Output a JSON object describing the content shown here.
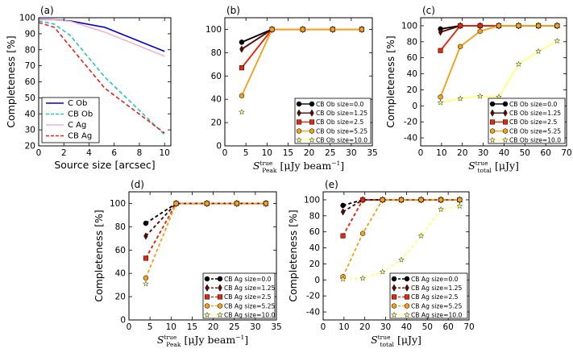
{
  "chart_data": [
    {
      "panel": "(a)",
      "type": "line",
      "xlabel": "Source size [arcsec]",
      "ylabel": "Completeness [%]",
      "xlim": [
        0,
        10.5
      ],
      "ylim": [
        20,
        100
      ],
      "xticks": [
        0,
        2,
        4,
        6,
        8,
        10
      ],
      "yticks": [
        20,
        30,
        40,
        50,
        60,
        70,
        80,
        90,
        100
      ],
      "legend": "lower-left",
      "series": [
        {
          "name": "C Ob",
          "color": "#0000cc",
          "dash": "solid",
          "marker": "none",
          "x": [
            0,
            1.25,
            2.5,
            5.25,
            10
          ],
          "y": [
            99,
            98.7,
            98,
            94,
            79
          ]
        },
        {
          "name": "CB Ob",
          "color": "#26c6b8",
          "dash": "dashed",
          "marker": "none",
          "x": [
            0,
            1.25,
            2.5,
            5.25,
            10
          ],
          "y": [
            98,
            96,
            89,
            63,
            27
          ]
        },
        {
          "name": "C Ag",
          "color": "#f3b4c7",
          "dash": "solid",
          "marker": "none",
          "x": [
            0,
            1.25,
            2.5,
            5.25,
            10
          ],
          "y": [
            98.8,
            98.6,
            97.8,
            91,
            76
          ]
        },
        {
          "name": "CB Ag",
          "color": "#e8231b",
          "dash": "dashed",
          "marker": "none",
          "x": [
            0,
            1.25,
            2.5,
            5.25,
            10
          ],
          "y": [
            97,
            94,
            82,
            56,
            28
          ]
        }
      ]
    },
    {
      "panel": "(b)",
      "type": "line",
      "xlabel_main": "S",
      "xlabel_sub": "Peak",
      "xlabel_sup": "true",
      "xlabel_units": "[μJy beam",
      "xlabel_units_sup": "−1",
      "xlabel_units_close": "]",
      "ylabel": "",
      "xlim": [
        0,
        35
      ],
      "ylim": [
        0,
        110
      ],
      "xticks": [
        0,
        5,
        10,
        15,
        20,
        25,
        30,
        35
      ],
      "yticks": [
        0,
        20,
        40,
        60,
        80,
        100
      ],
      "legend": "lower-right",
      "series": [
        {
          "name": "CB Ob size=0.0",
          "color": "#000000",
          "dash": "solid",
          "marker": "circle",
          "x": [
            4,
            11.2,
            18.5,
            25.6,
            32.5
          ],
          "y": [
            89,
            100,
            100,
            100,
            100
          ]
        },
        {
          "name": "CB Ob size=1.25",
          "color": "#5a0a02",
          "dash": "solid",
          "marker": "diamond",
          "x": [
            4,
            11.2,
            18.5,
            25.6,
            32.5
          ],
          "y": [
            83,
            100,
            100,
            100,
            100
          ]
        },
        {
          "name": "CB Ob size=2.5",
          "color": "#e2280e",
          "dash": "solid",
          "marker": "square",
          "x": [
            4,
            11.2,
            18.5,
            25.6,
            32.5
          ],
          "y": [
            67,
            100,
            100,
            100,
            100
          ]
        },
        {
          "name": "CB Ob size=5.25",
          "color": "#f5a21a",
          "dash": "solid",
          "marker": "hexagon",
          "x": [
            4,
            11.2,
            18.5,
            25.6,
            32.5
          ],
          "y": [
            43,
            100,
            100,
            100,
            100
          ]
        },
        {
          "name": "CB Ob size=10.0",
          "color": "#ffff80",
          "dash": "solid",
          "marker": "star",
          "x": [
            4
          ],
          "y": [
            29
          ]
        }
      ]
    },
    {
      "panel": "(c)",
      "type": "line",
      "xlabel_main": "S",
      "xlabel_sub": "total",
      "xlabel_sup": "true",
      "xlabel_units": "[μJy]",
      "ylabel": "Completeness [%]",
      "xlim": [
        0,
        70
      ],
      "ylim": [
        -50,
        110
      ],
      "xticks": [
        0,
        10,
        20,
        30,
        40,
        50,
        60,
        70
      ],
      "yticks": [
        -40,
        -20,
        0,
        20,
        40,
        60,
        80,
        100
      ],
      "legend": "lower-right",
      "series": [
        {
          "name": "CB Ob size=0.0",
          "color": "#000000",
          "dash": "solid",
          "marker": "circle",
          "x": [
            9.5,
            19,
            28.5,
            37.5,
            47,
            56.5,
            65.5
          ],
          "y": [
            96,
            100,
            100,
            100,
            100,
            100,
            100
          ]
        },
        {
          "name": "CB Ob size=1.25",
          "color": "#5a0a02",
          "dash": "solid",
          "marker": "diamond",
          "x": [
            9.5,
            19,
            28.5,
            37.5,
            47,
            56.5,
            65.5
          ],
          "y": [
            92,
            100,
            100,
            100,
            100,
            100,
            100
          ]
        },
        {
          "name": "CB Ob size=2.5",
          "color": "#e2280e",
          "dash": "solid",
          "marker": "square",
          "x": [
            9.5,
            19,
            28.5,
            37.5,
            47,
            56.5,
            65.5
          ],
          "y": [
            69,
            100,
            100,
            100,
            100,
            100,
            100
          ]
        },
        {
          "name": "CB Ob size=5.25",
          "color": "#f5a21a",
          "dash": "solid",
          "marker": "hexagon",
          "x": [
            9.5,
            19,
            28.5,
            37.5,
            47,
            56.5,
            65.5
          ],
          "y": [
            11,
            74,
            93,
            100,
            100,
            100,
            100
          ]
        },
        {
          "name": "CB Ob size=10.0",
          "color": "#ffff80",
          "dash": "solid",
          "marker": "star",
          "x": [
            9.5,
            19,
            28.5,
            37.5,
            47,
            56.5,
            65.5
          ],
          "y": [
            4,
            9,
            12,
            11,
            52,
            68,
            81
          ]
        }
      ]
    },
    {
      "panel": "(d)",
      "type": "line",
      "xlabel_main": "S",
      "xlabel_sub": "Peak",
      "xlabel_sup": "true",
      "xlabel_units": "[μJy beam",
      "xlabel_units_sup": "−1",
      "xlabel_units_close": "]",
      "ylabel": "Completeness [%]",
      "xlim": [
        0,
        35
      ],
      "ylim": [
        0,
        110
      ],
      "xticks": [
        0,
        5,
        10,
        15,
        20,
        25,
        30,
        35
      ],
      "yticks": [
        0,
        20,
        40,
        60,
        80,
        100
      ],
      "legend": "lower-right",
      "series": [
        {
          "name": "CB Ag size=0.0",
          "color": "#000000",
          "dash": "dashed",
          "marker": "circle",
          "x": [
            4,
            11.2,
            18.5,
            25.6,
            32.5
          ],
          "y": [
            83,
            100,
            100,
            100,
            100
          ]
        },
        {
          "name": "CB Ag size=1.25",
          "color": "#5a0a02",
          "dash": "dashed",
          "marker": "diamond",
          "x": [
            4,
            11.2,
            18.5,
            25.6,
            32.5
          ],
          "y": [
            72,
            100,
            100,
            100,
            100
          ]
        },
        {
          "name": "CB Ag size=2.5",
          "color": "#e2280e",
          "dash": "dashed",
          "marker": "square",
          "x": [
            4,
            11.2,
            18.5,
            25.6,
            32.5
          ],
          "y": [
            53,
            100,
            100,
            100,
            100
          ]
        },
        {
          "name": "CB Ag size=5.25",
          "color": "#f5a21a",
          "dash": "dashed",
          "marker": "hexagon",
          "x": [
            4,
            11.2,
            18.5,
            25.6,
            32.5
          ],
          "y": [
            36,
            100,
            100,
            100,
            100
          ]
        },
        {
          "name": "CB Ag size=10.0",
          "color": "#ffff80",
          "dash": "dashed",
          "marker": "star",
          "x": [
            4
          ],
          "y": [
            31
          ]
        }
      ]
    },
    {
      "panel": "(e)",
      "type": "line",
      "xlabel_main": "S",
      "xlabel_sub": "total",
      "xlabel_sup": "true",
      "xlabel_units": "[μJy]",
      "ylabel": "Completeness [%]",
      "xlim": [
        0,
        70
      ],
      "ylim": [
        -50,
        110
      ],
      "xticks": [
        0,
        10,
        20,
        30,
        40,
        50,
        60,
        70
      ],
      "yticks": [
        -40,
        -20,
        0,
        20,
        40,
        60,
        80,
        100
      ],
      "legend": "lower-right",
      "series": [
        {
          "name": "CB Ag size=0.0",
          "color": "#000000",
          "dash": "dashed",
          "marker": "circle",
          "x": [
            9.5,
            19,
            28.5,
            37.5,
            47,
            56.5,
            65.5
          ],
          "y": [
            93,
            100,
            100,
            100,
            100,
            100,
            100
          ]
        },
        {
          "name": "CB Ag size=1.25",
          "color": "#5a0a02",
          "dash": "dashed",
          "marker": "diamond",
          "x": [
            9.5,
            19,
            28.5,
            37.5,
            47,
            56.5,
            65.5
          ],
          "y": [
            85,
            100,
            100,
            100,
            100,
            100,
            100
          ]
        },
        {
          "name": "CB Ag size=2.5",
          "color": "#e2280e",
          "dash": "dashed",
          "marker": "square",
          "x": [
            9.5,
            19,
            28.5,
            37.5,
            47,
            56.5,
            65.5
          ],
          "y": [
            55,
            100,
            100,
            100,
            100,
            100,
            100
          ]
        },
        {
          "name": "CB Ag size=5.25",
          "color": "#f5a21a",
          "dash": "dashed",
          "marker": "hexagon",
          "x": [
            9.5,
            19,
            28.5,
            37.5,
            47,
            56.5,
            65.5
          ],
          "y": [
            4,
            58,
            100,
            100,
            100,
            100,
            100
          ]
        },
        {
          "name": "CB Ag size=10.0",
          "color": "#ffff80",
          "dash": "dashed",
          "marker": "star",
          "x": [
            9.5,
            19,
            28.5,
            37.5,
            47,
            56.5,
            65.5
          ],
          "y": [
            1,
            2,
            10,
            25,
            55,
            88,
            92
          ]
        }
      ]
    }
  ]
}
